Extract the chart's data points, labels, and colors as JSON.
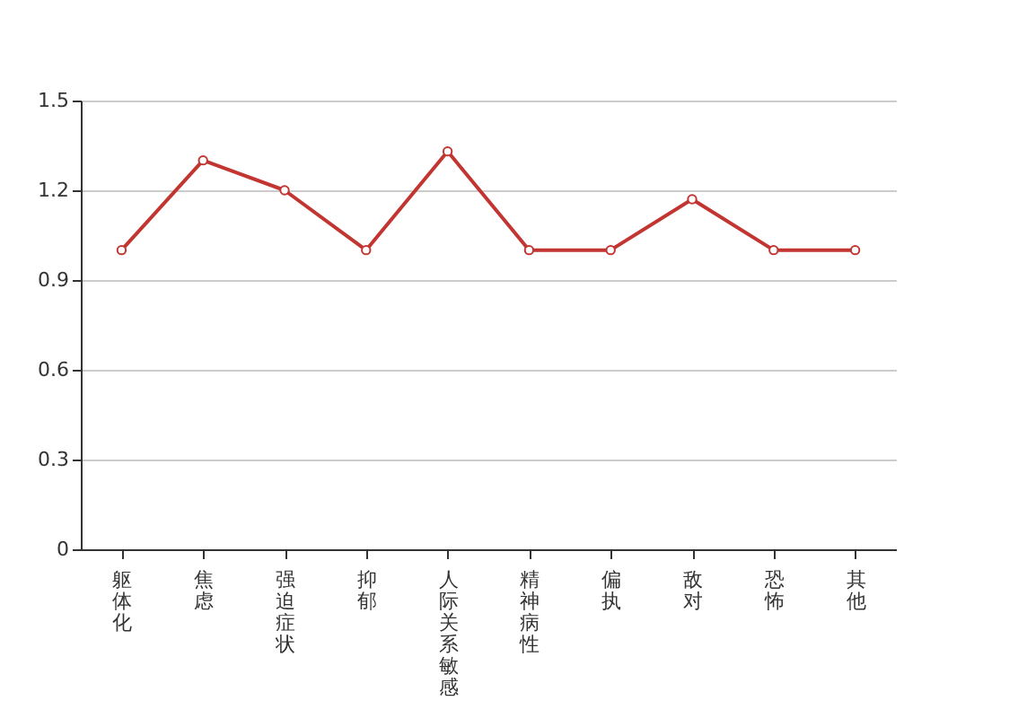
{
  "chart_data": {
    "type": "line",
    "categories": [
      "躯体化",
      "焦虑",
      "强迫症状",
      "抑郁",
      "人际关系敏感",
      "精神病性",
      "偏执",
      "敌对",
      "恐怖",
      "其他"
    ],
    "series": [
      {
        "color": "#c23531",
        "values": [
          1.0,
          1.3,
          1.2,
          1.0,
          1.33,
          1.0,
          1.0,
          1.17,
          1.0,
          1.0
        ]
      }
    ],
    "ylim": [
      0,
      1.5
    ],
    "yticks": [
      0,
      0.3,
      0.6,
      0.9,
      1.2,
      1.5
    ],
    "grid": "y",
    "marker": "circle",
    "line_style": "solid",
    "legend": false
  }
}
